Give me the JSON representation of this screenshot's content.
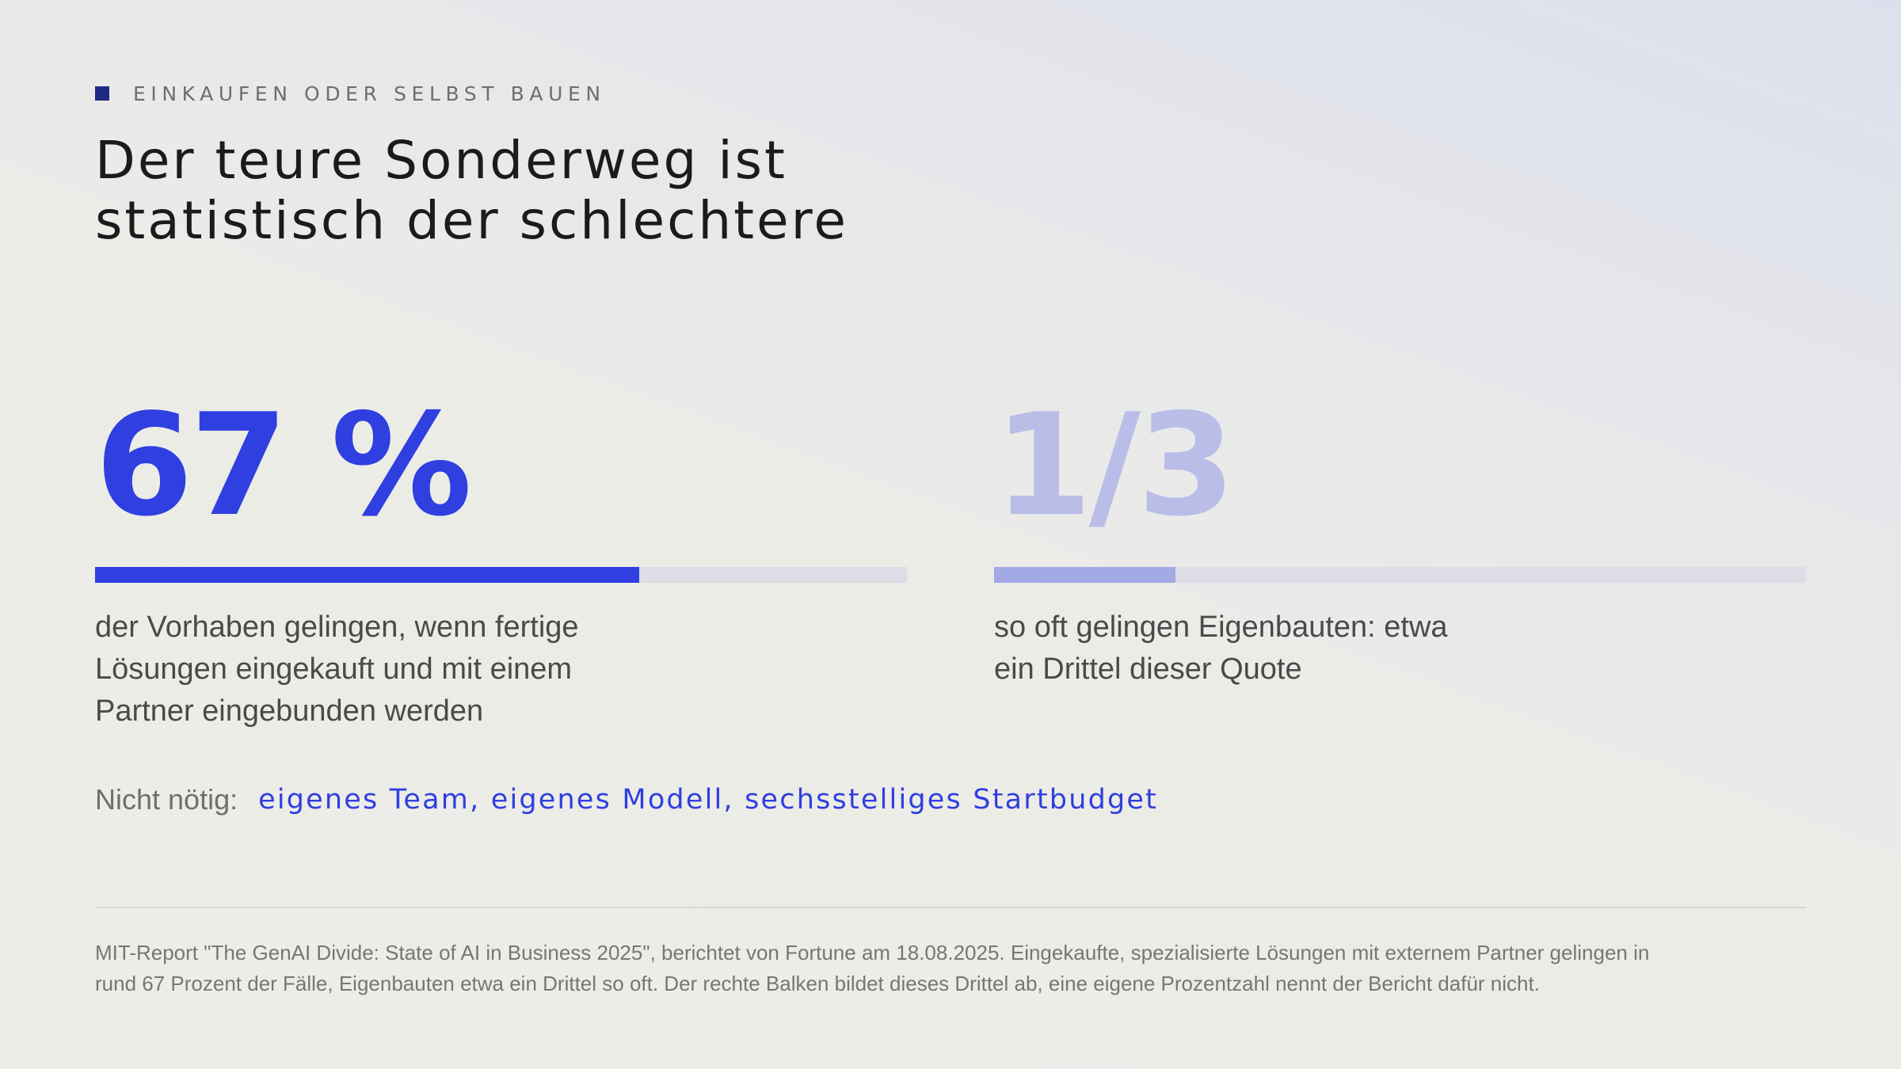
{
  "kicker": "EINKAUFEN ODER SELBST BAUEN",
  "title": {
    "line1": "Der teure Sonderweg ist",
    "line2": "statistisch der schlechtere"
  },
  "stats": [
    {
      "value": "67 %",
      "bar_fraction": 0.67,
      "description_lines": [
        "der Vorhaben gelingen, wenn fertige",
        "Lösungen eingekauft und mit einem",
        "Partner eingebunden werden"
      ],
      "color": "#2f3fe0"
    },
    {
      "value": "1/3",
      "bar_fraction": 0.2233,
      "description_lines": [
        "so oft gelingen Eigenbauten: etwa",
        "ein Drittel dieser Quote"
      ],
      "color": "#b9bde8"
    }
  ],
  "not_needed": {
    "label": "Nicht nötig:",
    "value": "eigenes Team, eigenes Modell, sechsstelliges Startbudget"
  },
  "source_lines": [
    "MIT-Report \"The GenAI Divide: State of AI in Business 2025\", berichtet von Fortune am 18.08.2025. Eingekaufte, spezialisierte Lösungen mit externem Partner gelingen in",
    "rund 67 Prozent der Fälle, Eigenbauten etwa ein Drittel so oft. Der rechte Balken bildet dieses Drittel ab, eine eigene Prozentzahl nennt der Bericht dafür nicht."
  ],
  "colors": {
    "accent": "#2f3fe0",
    "accent_light": "#b9bde8",
    "kicker_square": "#1f2a85",
    "bar_track": "#dcdde6"
  }
}
